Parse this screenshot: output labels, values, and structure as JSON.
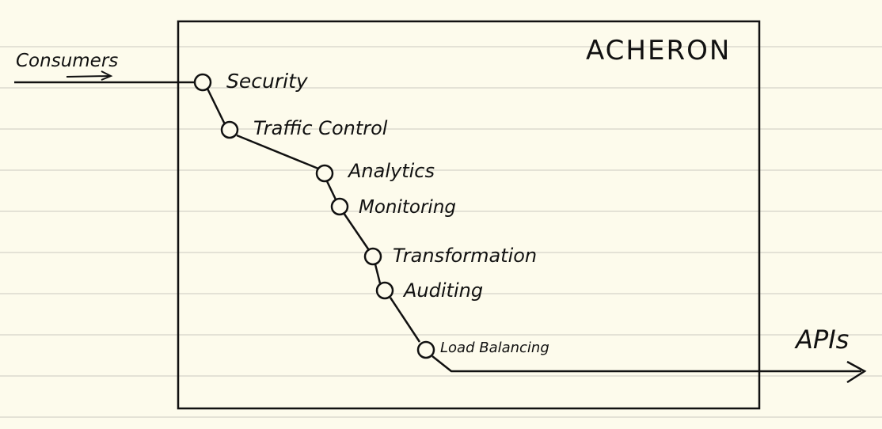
{
  "diagram": {
    "system_name": "ACHERON",
    "input_label": "Consumers",
    "output_label": "APIs",
    "stages": [
      "Security",
      "Traffic Control",
      "Analytics",
      "Monitoring",
      "Transformation",
      "Auditing",
      "Load Balancing"
    ]
  },
  "colors": {
    "ink": "#111111",
    "paper": "#fdfbec",
    "ruled_line": "#e4e2d6"
  }
}
